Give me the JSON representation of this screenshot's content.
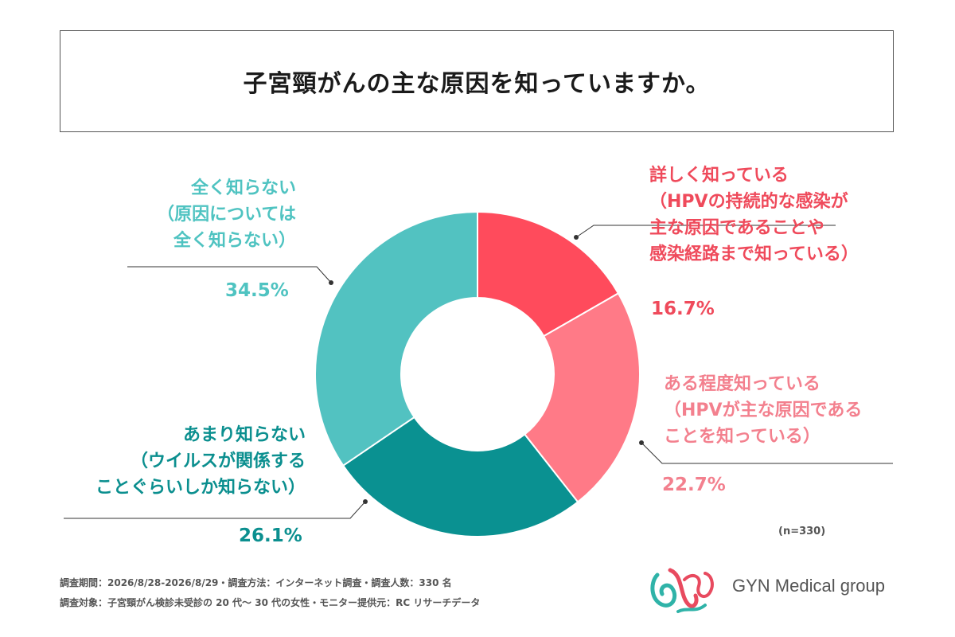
{
  "title": "子宮頸がんの主な原因を知っていますか。",
  "chart_data": {
    "type": "pie",
    "variant": "donut",
    "slices": [
      {
        "label_lines": [
          "詳しく知っている",
          "（HPVの持続的な感染が",
          "主な原因であることや",
          "感染経路まで知っている）"
        ],
        "value": 16.7,
        "value_label": "16.7%",
        "color": "#ff4b5c",
        "text_color": "#ef4a5b"
      },
      {
        "label_lines": [
          "ある程度知っている",
          "（HPVが主な原因である",
          "ことを知っている）"
        ],
        "value": 22.7,
        "value_label": "22.7%",
        "color": "#ff7a87",
        "text_color": "#f3808e"
      },
      {
        "label_lines": [
          "あまり知らない",
          "（ウイルスが関係する",
          "ことぐらいしか知らない）"
        ],
        "value": 26.1,
        "value_label": "26.1%",
        "color": "#0a9191",
        "text_color": "#0b8f8f"
      },
      {
        "label_lines": [
          "全く知らない",
          "（原因については",
          "全く知らない）"
        ],
        "value": 34.5,
        "value_label": "34.5%",
        "color": "#52c2c1",
        "text_color": "#4fc3c1"
      }
    ],
    "start": "top",
    "direction": "clockwise"
  },
  "sample_note": "(n=330)",
  "footer": {
    "line1": "調査期間：2026/8/28-2026/8/29・調査方法：インターネット調査・調査人数：330 名",
    "line2": "調査対象：子宮頸がん検診未受診の 20 代～ 30 代の女性・モニター提供元：RC リサーチデータ"
  },
  "logo": {
    "text": "GYN Medical group",
    "colors": {
      "pink": "#e84a5f",
      "teal": "#2fb3a8"
    }
  }
}
